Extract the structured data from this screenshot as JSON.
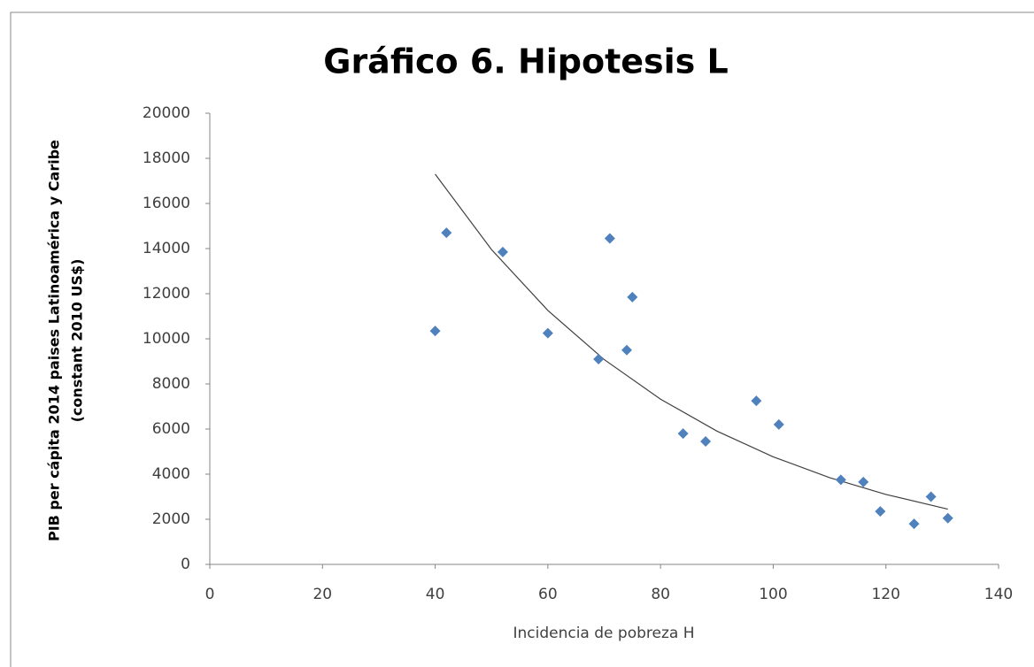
{
  "chart_data": {
    "type": "scatter",
    "title": "Gráfico 6. Hipotesis L",
    "x_label": "Incidencia de pobreza H",
    "y_label": [
      "PIB per cápita 2014 paises Latinoamérica y Caribe",
      "(constant 2010 US$)"
    ],
    "series": [
      {
        "color": "#4f81bd",
        "x": [
          40,
          42,
          52,
          60,
          69,
          71,
          74,
          75,
          84,
          88,
          97,
          101,
          112,
          116,
          119,
          125,
          128,
          131
        ],
        "values": [
          10350,
          14700,
          13850,
          10250,
          9100,
          14450,
          9500,
          11850,
          5800,
          5450,
          7250,
          6200,
          3750,
          3650,
          2350,
          1800,
          3000,
          2050
        ]
      }
    ],
    "trendline": {
      "color": "#404040",
      "x": [
        40,
        50,
        60,
        70,
        80,
        90,
        100,
        110,
        120,
        131
      ],
      "values": [
        17300,
        13956,
        11257,
        9081,
        7325,
        5909,
        4768,
        3846,
        3102,
        2450
      ]
    },
    "xlim": [
      0,
      140
    ],
    "xticks": [
      0,
      20,
      40,
      60,
      80,
      100,
      120,
      140
    ],
    "ylim": [
      0,
      20000
    ],
    "yticks": [
      0,
      2000,
      4000,
      6000,
      8000,
      10000,
      12000,
      14000,
      16000,
      18000,
      20000
    ],
    "grid": false
  }
}
